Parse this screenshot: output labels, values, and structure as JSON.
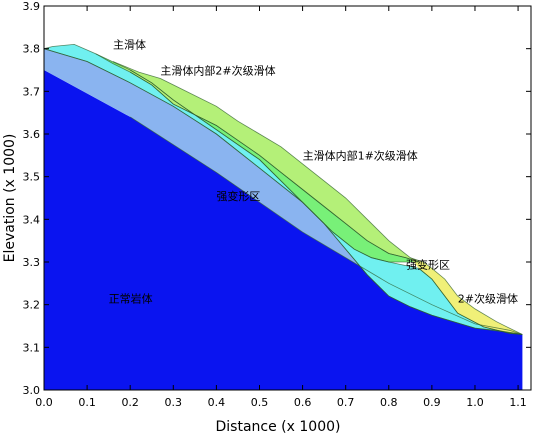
{
  "chart_data": {
    "type": "area",
    "xlabel": "Distance (x 1000)",
    "ylabel": "Elevation (x 1000)",
    "xlim": [
      0.0,
      1.13
    ],
    "ylim": [
      3.0,
      3.9
    ],
    "xticks": [
      "0.0",
      "0.1",
      "0.2",
      "0.3",
      "0.4",
      "0.5",
      "0.6",
      "0.7",
      "0.8",
      "0.9",
      "1.0",
      "1.1"
    ],
    "yticks": [
      "3.0",
      "3.1",
      "3.2",
      "3.3",
      "3.4",
      "3.5",
      "3.6",
      "3.7",
      "3.8",
      "3.9"
    ],
    "grid": false,
    "regions": [
      {
        "name": "正常岩体",
        "color": "#0a14f0",
        "polygon": [
          [
            0.0,
            3.0
          ],
          [
            0.0,
            3.75
          ],
          [
            0.2,
            3.64
          ],
          [
            0.4,
            3.51
          ],
          [
            0.6,
            3.37
          ],
          [
            0.8,
            3.25
          ],
          [
            0.9,
            3.2
          ],
          [
            1.0,
            3.155
          ],
          [
            1.08,
            3.14
          ],
          [
            1.11,
            3.13
          ],
          [
            1.11,
            3.0
          ]
        ]
      },
      {
        "name": "强变形区",
        "color": "#8ab4f0",
        "polygon": [
          [
            0.0,
            3.75
          ],
          [
            0.0,
            3.8
          ],
          [
            0.1,
            3.77
          ],
          [
            0.2,
            3.72
          ],
          [
            0.3,
            3.665
          ],
          [
            0.4,
            3.6
          ],
          [
            0.5,
            3.52
          ],
          [
            0.6,
            3.44
          ],
          [
            0.65,
            3.39
          ],
          [
            0.7,
            3.33
          ],
          [
            0.75,
            3.27
          ],
          [
            0.8,
            3.22
          ],
          [
            0.85,
            3.195
          ],
          [
            0.9,
            3.175
          ],
          [
            1.0,
            3.145
          ],
          [
            1.05,
            3.14
          ],
          [
            1.1,
            3.132
          ],
          [
            1.11,
            3.13
          ],
          [
            1.08,
            3.14
          ],
          [
            1.0,
            3.155
          ],
          [
            0.9,
            3.2
          ],
          [
            0.8,
            3.25
          ],
          [
            0.6,
            3.37
          ],
          [
            0.4,
            3.51
          ],
          [
            0.2,
            3.64
          ]
        ]
      },
      {
        "name": "主滑体",
        "color": "#70f0f0",
        "polygon": [
          [
            0.0,
            3.8
          ],
          [
            0.02,
            3.805
          ],
          [
            0.07,
            3.81
          ],
          [
            0.12,
            3.788
          ],
          [
            0.2,
            3.75
          ],
          [
            0.25,
            3.72
          ],
          [
            0.3,
            3.68
          ],
          [
            0.4,
            3.61
          ],
          [
            0.5,
            3.54
          ],
          [
            0.6,
            3.44
          ],
          [
            0.67,
            3.37
          ],
          [
            0.72,
            3.33
          ],
          [
            0.76,
            3.31
          ],
          [
            0.8,
            3.3
          ],
          [
            0.87,
            3.285
          ],
          [
            0.9,
            3.26
          ],
          [
            0.93,
            3.22
          ],
          [
            0.96,
            3.18
          ],
          [
            1.02,
            3.148
          ],
          [
            1.08,
            3.133
          ],
          [
            1.11,
            3.13
          ],
          [
            1.1,
            3.132
          ],
          [
            1.0,
            3.145
          ],
          [
            0.9,
            3.175
          ],
          [
            0.85,
            3.195
          ],
          [
            0.8,
            3.22
          ],
          [
            0.75,
            3.27
          ],
          [
            0.7,
            3.33
          ],
          [
            0.65,
            3.39
          ],
          [
            0.6,
            3.44
          ],
          [
            0.5,
            3.52
          ],
          [
            0.4,
            3.6
          ],
          [
            0.3,
            3.665
          ],
          [
            0.2,
            3.72
          ],
          [
            0.1,
            3.77
          ],
          [
            0.0,
            3.8
          ]
        ]
      },
      {
        "name": "主滑体内部2#次级滑体",
        "color": "#78f078",
        "polygon": [
          [
            0.12,
            3.788
          ],
          [
            0.16,
            3.765
          ],
          [
            0.2,
            3.745
          ],
          [
            0.25,
            3.715
          ],
          [
            0.3,
            3.67
          ],
          [
            0.4,
            3.62
          ],
          [
            0.5,
            3.55
          ],
          [
            0.55,
            3.51
          ],
          [
            0.6,
            3.47
          ],
          [
            0.65,
            3.43
          ],
          [
            0.7,
            3.39
          ],
          [
            0.75,
            3.35
          ],
          [
            0.8,
            3.32
          ],
          [
            0.84,
            3.31
          ],
          [
            0.87,
            3.3
          ],
          [
            0.8,
            3.3
          ],
          [
            0.76,
            3.31
          ],
          [
            0.72,
            3.33
          ],
          [
            0.67,
            3.37
          ],
          [
            0.6,
            3.44
          ],
          [
            0.5,
            3.54
          ],
          [
            0.4,
            3.61
          ],
          [
            0.3,
            3.68
          ],
          [
            0.25,
            3.72
          ],
          [
            0.2,
            3.75
          ]
        ]
      },
      {
        "name": "主滑体内部1#次级滑体",
        "color": "#b4f078",
        "polygon": [
          [
            0.16,
            3.77
          ],
          [
            0.22,
            3.745
          ],
          [
            0.27,
            3.73
          ],
          [
            0.3,
            3.715
          ],
          [
            0.4,
            3.665
          ],
          [
            0.45,
            3.63
          ],
          [
            0.5,
            3.6
          ],
          [
            0.55,
            3.57
          ],
          [
            0.6,
            3.53
          ],
          [
            0.65,
            3.49
          ],
          [
            0.7,
            3.45
          ],
          [
            0.75,
            3.4
          ],
          [
            0.8,
            3.35
          ],
          [
            0.85,
            3.31
          ],
          [
            0.87,
            3.3
          ],
          [
            0.84,
            3.31
          ],
          [
            0.8,
            3.32
          ],
          [
            0.75,
            3.35
          ],
          [
            0.7,
            3.39
          ],
          [
            0.65,
            3.43
          ],
          [
            0.6,
            3.47
          ],
          [
            0.55,
            3.51
          ],
          [
            0.5,
            3.55
          ],
          [
            0.4,
            3.62
          ],
          [
            0.3,
            3.67
          ],
          [
            0.25,
            3.715
          ],
          [
            0.2,
            3.745
          ]
        ]
      },
      {
        "name": "2#次级滑体",
        "color": "#f0f078",
        "polygon": [
          [
            0.85,
            3.31
          ],
          [
            0.88,
            3.3
          ],
          [
            0.9,
            3.285
          ],
          [
            0.93,
            3.26
          ],
          [
            0.96,
            3.22
          ],
          [
            1.0,
            3.19
          ],
          [
            1.05,
            3.16
          ],
          [
            1.1,
            3.135
          ],
          [
            1.11,
            3.13
          ],
          [
            1.08,
            3.133
          ],
          [
            1.02,
            3.148
          ],
          [
            0.96,
            3.18
          ],
          [
            0.93,
            3.22
          ],
          [
            0.9,
            3.26
          ],
          [
            0.87,
            3.285
          ]
        ]
      }
    ],
    "annotations": [
      {
        "text": "主滑体",
        "x": 0.16,
        "y": 3.8
      },
      {
        "text": "主滑体内部2#次级滑体",
        "x": 0.27,
        "y": 3.74
      },
      {
        "text": "主滑体内部1#次级滑体",
        "x": 0.6,
        "y": 3.54
      },
      {
        "text": "强变形区",
        "x": 0.4,
        "y": 3.445
      },
      {
        "text": "强变形区",
        "x": 0.84,
        "y": 3.285
      },
      {
        "text": "2#次级滑体",
        "x": 0.96,
        "y": 3.205
      },
      {
        "text": "正常岩体",
        "x": 0.15,
        "y": 3.205
      }
    ]
  }
}
